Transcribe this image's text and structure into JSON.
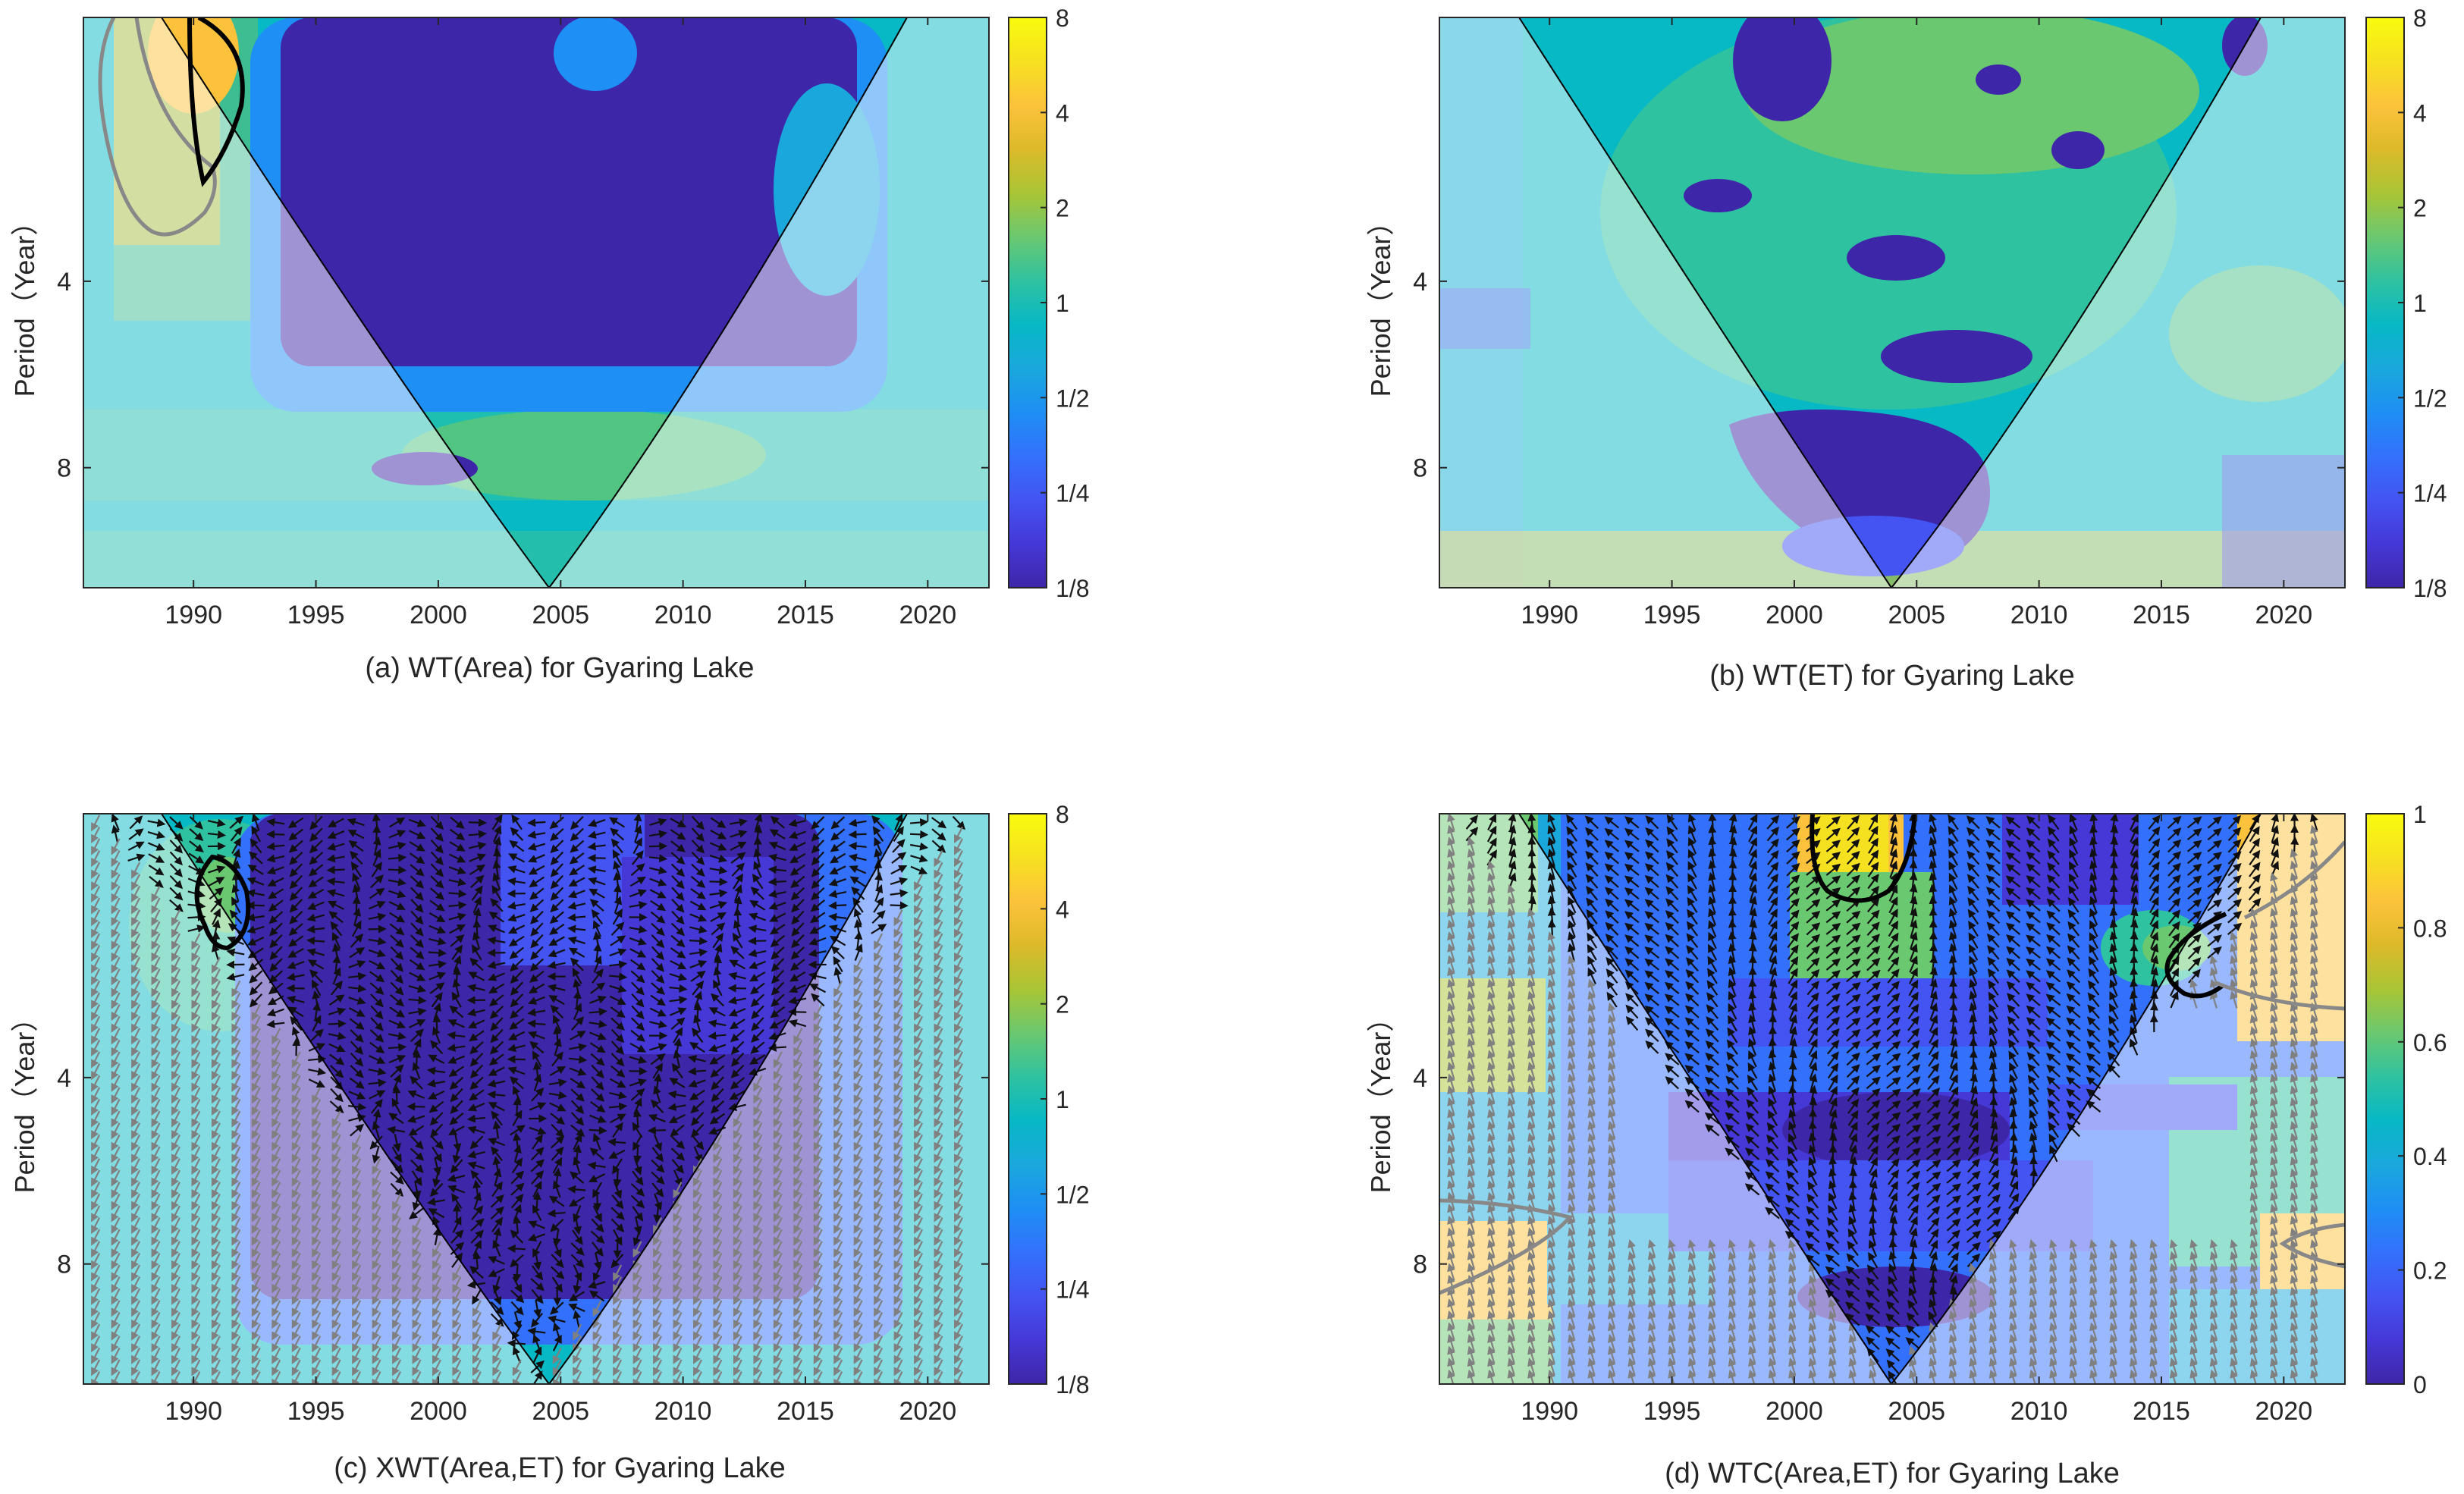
{
  "colors": {
    "parula": [
      "#3e26a8",
      "#4538d7",
      "#4354f2",
      "#3371fc",
      "#1e8ff4",
      "#1aa8dc",
      "#07b8c5",
      "#2fc2a1",
      "#6ac870",
      "#a9c535",
      "#dcba2a",
      "#fdc23c",
      "#f6e120",
      "#f9fb0e"
    ],
    "coi_shade": "rgba(255,255,255,0.5)",
    "contour_sig": "#000000",
    "contour_outside": "#888888",
    "arrow": "#111111",
    "arrow_outside": "#808080"
  },
  "panels": [
    {
      "id": "a",
      "caption": "(a) WT(Area) for Gyaring Lake",
      "ylabel": "Period（Year）",
      "xticks": [
        "1990",
        "1995",
        "2000",
        "2005",
        "2010",
        "2015",
        "2020"
      ],
      "yticks": [
        "4",
        "8"
      ],
      "colorbar_ticks": [
        "8",
        "4",
        "2",
        "1",
        "1/2",
        "1/4",
        "1/8"
      ],
      "arrows": false
    },
    {
      "id": "b",
      "caption": "(b) WT(ET) for Gyaring Lake",
      "ylabel": "Period（Year）",
      "xticks": [
        "1990",
        "1995",
        "2000",
        "2005",
        "2010",
        "2015",
        "2020"
      ],
      "yticks": [
        "4",
        "8"
      ],
      "colorbar_ticks": [
        "8",
        "4",
        "2",
        "1",
        "1/2",
        "1/4",
        "1/8"
      ],
      "arrows": false
    },
    {
      "id": "c",
      "caption": "(c) XWT(Area,ET) for Gyaring Lake",
      "ylabel": "Period（Year）",
      "xticks": [
        "1990",
        "1995",
        "2000",
        "2005",
        "2010",
        "2015",
        "2020"
      ],
      "yticks": [
        "4",
        "8"
      ],
      "colorbar_ticks": [
        "8",
        "4",
        "2",
        "1",
        "1/2",
        "1/4",
        "1/8"
      ],
      "arrows": true
    },
    {
      "id": "d",
      "caption": "(d) WTC(Area,ET) for Gyaring Lake",
      "ylabel": "Period（Year）",
      "xticks": [
        "1990",
        "1995",
        "2000",
        "2005",
        "2010",
        "2015",
        "2020"
      ],
      "yticks": [
        "4",
        "8"
      ],
      "colorbar_ticks": [
        "1",
        "0.8",
        "0.6",
        "0.4",
        "0.2",
        "0"
      ],
      "arrows": true
    }
  ],
  "chart_data": [
    {
      "type": "heatmap",
      "title": "(a) WT(Area) for Gyaring Lake",
      "ylabel": "Period（Year）",
      "xlim": [
        1985.5,
        2022.5
      ],
      "ylim_period": [
        1.5,
        12.5
      ],
      "yscale": "log2",
      "colorbar": {
        "scale": "log2",
        "range": [
          "1/8",
          "8"
        ]
      },
      "cone_of_influence": {
        "apex_year": 2004
      },
      "features": [
        {
          "x_range": [
            1986,
            1993
          ],
          "period_range": [
            1.5,
            4.2
          ],
          "level": "4",
          "significant_contour": true
        },
        {
          "x_range": [
            1994,
            2019
          ],
          "period_range": [
            1.5,
            7
          ],
          "level": "1/8"
        },
        {
          "x_range": [
            1996,
            2002
          ],
          "period_range": [
            8.5,
            9.5
          ],
          "level": "1/8"
        },
        {
          "x_range": [
            2000,
            2016
          ],
          "period_range": [
            7,
            10
          ],
          "level": "1"
        }
      ]
    },
    {
      "type": "heatmap",
      "title": "(b) WT(ET) for Gyaring Lake",
      "ylabel": "Period（Year）",
      "xlim": [
        1985.5,
        2022.5
      ],
      "ylim_period": [
        1.5,
        12.5
      ],
      "yscale": "log2",
      "colorbar": {
        "scale": "log2",
        "range": [
          "1/8",
          "8"
        ]
      },
      "cone_of_influence": {
        "apex_year": 2004
      },
      "features": [
        {
          "x_range": [
            1993,
            2018
          ],
          "period_range": [
            1.5,
            7
          ],
          "level": "1"
        },
        {
          "x_range": [
            1998,
            2002
          ],
          "period_range": [
            1.5,
            2.5
          ],
          "level": "1/8"
        },
        {
          "x_range": [
            2003,
            2006
          ],
          "period_range": [
            4.2,
            5
          ],
          "level": "1/8"
        },
        {
          "x_range": [
            1999,
            2008
          ],
          "period_range": [
            7.5,
            11
          ],
          "level": "1/8"
        },
        {
          "x_range": [
            2005,
            2011
          ],
          "period_range": [
            5.8,
            6.8
          ],
          "level": "1/8"
        }
      ]
    },
    {
      "type": "heatmap",
      "title": "(c) XWT(Area,ET) for Gyaring Lake",
      "ylabel": "Period（Year）",
      "xlim": [
        1985.5,
        2022.5
      ],
      "ylim_period": [
        1.5,
        12.5
      ],
      "yscale": "log2",
      "colorbar": {
        "scale": "log2",
        "range": [
          "1/8",
          "8"
        ]
      },
      "cone_of_influence": {
        "apex_year": 2004
      },
      "phase_arrows": true,
      "features": [
        {
          "x_range": [
            1990,
            1993
          ],
          "period_range": [
            1.8,
            2.8
          ],
          "level": "2",
          "significant_contour": true
        },
        {
          "x_range": [
            1993,
            2018
          ],
          "period_range": [
            1.5,
            10
          ],
          "level": "1/8"
        }
      ]
    },
    {
      "type": "heatmap",
      "title": "(d) WTC(Area,ET) for Gyaring Lake",
      "ylabel": "Period（Year）",
      "xlim": [
        1985.5,
        2022.5
      ],
      "ylim_period": [
        1.5,
        12.5
      ],
      "yscale": "log2",
      "colorbar": {
        "scale": "linear",
        "range": [
          0,
          1
        ]
      },
      "cone_of_influence": {
        "apex_year": 2004
      },
      "phase_arrows": true,
      "features": [
        {
          "x_range": [
            2000,
            2005
          ],
          "period_range": [
            1.5,
            2.5
          ],
          "level": 0.8,
          "significant_contour": true
        },
        {
          "x_range": [
            2014,
            2018
          ],
          "period_range": [
            2.5,
            3.5
          ],
          "level": 0.6,
          "significant_contour": true
        },
        {
          "x_range": [
            2018,
            2022
          ],
          "period_range": [
            1.5,
            3.8
          ],
          "level": 0.7
        },
        {
          "x_range": [
            1986,
            1991
          ],
          "period_range": [
            7.5,
            9.5
          ],
          "level": 0.8
        },
        {
          "x_range": [
            2019,
            2022
          ],
          "period_range": [
            7.5,
            9
          ],
          "level": 0.7
        },
        {
          "x_range": [
            1996,
            2016
          ],
          "period_range": [
            4,
            12
          ],
          "level": 0.05
        }
      ]
    }
  ]
}
